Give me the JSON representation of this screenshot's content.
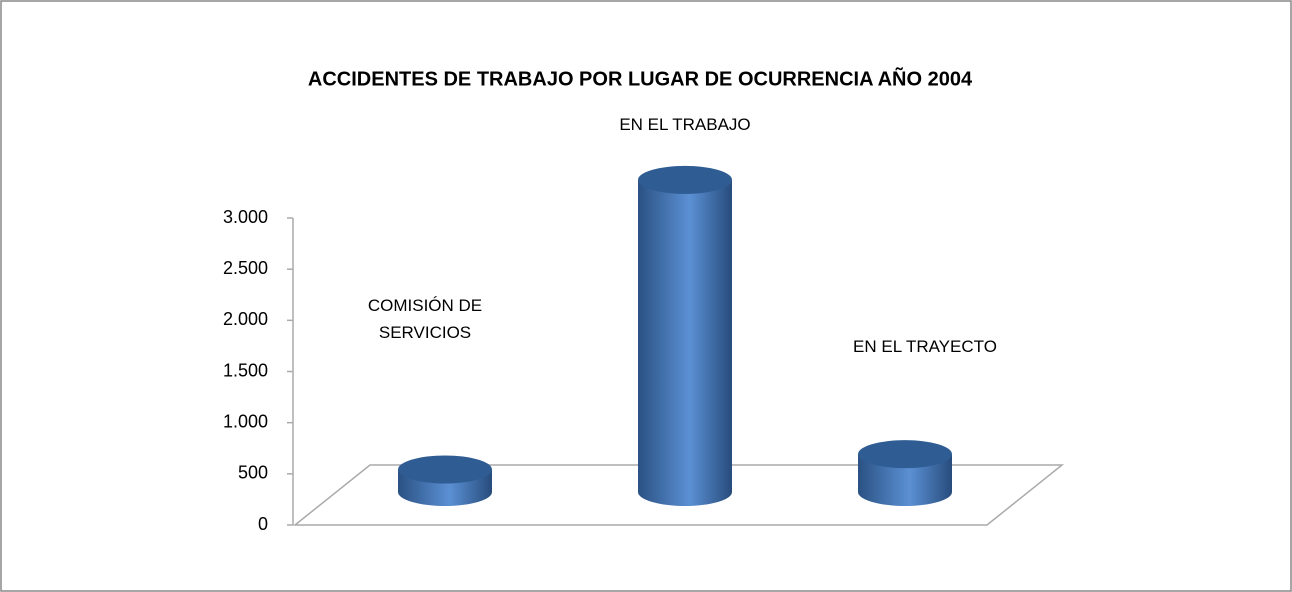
{
  "chart_data": {
    "type": "bar3d",
    "title": "ACCIDENTES DE TRABAJO POR LUGAR DE OCURRENCIA AÑO 2004",
    "categories": [
      "COMISIÓN DE SERVICIOS",
      "EN EL TRABAJO",
      "EN EL TRAYECTO"
    ],
    "values": [
      220,
      3050,
      370
    ],
    "color": "#4f81bd",
    "ylim": [
      0,
      3000
    ],
    "yticks": [
      0,
      500,
      {
        "value": 1000,
        "label": "1.000"
      },
      {
        "value": 1500,
        "label": "1.500"
      },
      {
        "value": 2000,
        "label": "2.000"
      },
      {
        "value": 2500,
        "label": "2.500"
      },
      {
        "value": 3000,
        "label": "3.000"
      }
    ],
    "grid": false
  }
}
